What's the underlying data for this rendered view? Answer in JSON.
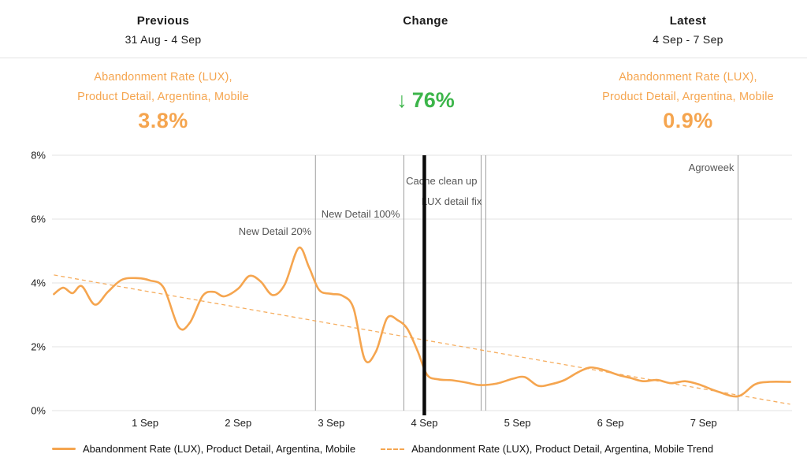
{
  "colors": {
    "accent_orange": "#F5A54F",
    "positive_green": "#3CB54A",
    "text_dark": "#1b1b1b",
    "annotation_gray": "#555555",
    "event_line_gray": "#9e9e9e",
    "grid_gray": "#e3e3e3",
    "divider_black": "#0a0a0a"
  },
  "header": {
    "previous": {
      "label": "Previous",
      "range": "31 Aug - 4 Sep"
    },
    "change": {
      "label": "Change"
    },
    "latest": {
      "label": "Latest",
      "range": "4 Sep - 7 Sep"
    }
  },
  "metrics": {
    "previous": {
      "name_line1": "Abandonment Rate (LUX),",
      "name_line2": "Product Detail, Argentina, Mobile",
      "value": "3.8%"
    },
    "change": {
      "arrow": "↓",
      "value": "76%"
    },
    "latest": {
      "name_line1": "Abandonment Rate (LUX),",
      "name_line2": "Product Detail, Argentina, Mobile",
      "value": "0.9%"
    }
  },
  "legend": [
    {
      "style": "solid",
      "label": "Abandonment Rate (LUX), Product Detail, Argentina, Mobile"
    },
    {
      "style": "dashed",
      "label": "Abandonment Rate (LUX), Product Detail, Argentina, Mobile Trend"
    }
  ],
  "chart_data": {
    "type": "line",
    "title": "Abandonment Rate (LUX), Product Detail, Argentina, Mobile",
    "x_unit": "days since 31 Aug",
    "xlim": [
      0,
      7.95
    ],
    "ylim": [
      0,
      8
    ],
    "grid": true,
    "yticks": [
      {
        "value": 0,
        "label": "0%"
      },
      {
        "value": 2,
        "label": "2%"
      },
      {
        "value": 4,
        "label": "4%"
      },
      {
        "value": 6,
        "label": "6%"
      },
      {
        "value": 8,
        "label": "8%"
      }
    ],
    "xticks": [
      {
        "value": 1,
        "label": "1 Sep"
      },
      {
        "value": 2,
        "label": "2 Sep"
      },
      {
        "value": 3,
        "label": "3 Sep"
      },
      {
        "value": 4,
        "label": "4 Sep"
      },
      {
        "value": 5,
        "label": "5 Sep"
      },
      {
        "value": 6,
        "label": "6 Sep"
      },
      {
        "value": 7,
        "label": "7 Sep"
      }
    ],
    "series": [
      {
        "name": "Abandonment Rate (LUX), Product Detail, Argentina, Mobile",
        "style": "solid",
        "points": [
          [
            0.02,
            3.65
          ],
          [
            0.12,
            3.85
          ],
          [
            0.22,
            3.68
          ],
          [
            0.32,
            3.9
          ],
          [
            0.46,
            3.32
          ],
          [
            0.6,
            3.72
          ],
          [
            0.75,
            4.1
          ],
          [
            0.92,
            4.15
          ],
          [
            1.05,
            4.08
          ],
          [
            1.2,
            3.85
          ],
          [
            1.36,
            2.62
          ],
          [
            1.48,
            2.75
          ],
          [
            1.62,
            3.6
          ],
          [
            1.74,
            3.72
          ],
          [
            1.85,
            3.58
          ],
          [
            2.0,
            3.82
          ],
          [
            2.12,
            4.22
          ],
          [
            2.24,
            4.05
          ],
          [
            2.37,
            3.62
          ],
          [
            2.5,
            3.95
          ],
          [
            2.65,
            5.1
          ],
          [
            2.76,
            4.5
          ],
          [
            2.87,
            3.78
          ],
          [
            3.0,
            3.66
          ],
          [
            3.12,
            3.6
          ],
          [
            3.24,
            3.2
          ],
          [
            3.36,
            1.6
          ],
          [
            3.48,
            1.85
          ],
          [
            3.6,
            2.9
          ],
          [
            3.72,
            2.82
          ],
          [
            3.82,
            2.55
          ],
          [
            3.93,
            1.85
          ],
          [
            4.03,
            1.12
          ],
          [
            4.15,
            0.98
          ],
          [
            4.3,
            0.95
          ],
          [
            4.45,
            0.88
          ],
          [
            4.6,
            0.8
          ],
          [
            4.78,
            0.85
          ],
          [
            4.95,
            1.0
          ],
          [
            5.08,
            1.05
          ],
          [
            5.22,
            0.78
          ],
          [
            5.35,
            0.82
          ],
          [
            5.5,
            0.95
          ],
          [
            5.65,
            1.2
          ],
          [
            5.78,
            1.35
          ],
          [
            5.92,
            1.28
          ],
          [
            6.08,
            1.12
          ],
          [
            6.22,
            1.02
          ],
          [
            6.35,
            0.92
          ],
          [
            6.5,
            0.96
          ],
          [
            6.65,
            0.86
          ],
          [
            6.8,
            0.92
          ],
          [
            6.95,
            0.82
          ],
          [
            7.15,
            0.6
          ],
          [
            7.37,
            0.45
          ],
          [
            7.55,
            0.82
          ],
          [
            7.7,
            0.9
          ],
          [
            7.93,
            0.9
          ]
        ]
      },
      {
        "name": "Abandonment Rate (LUX), Product Detail, Argentina, Mobile Trend",
        "style": "dashed",
        "points": [
          [
            0.02,
            4.25
          ],
          [
            7.93,
            0.2
          ]
        ]
      }
    ],
    "events": [
      {
        "label": "New Detail 20%",
        "day": 2.83,
        "label_dy": 97
      },
      {
        "label": "New Detail 100%",
        "day": 3.78,
        "label_dy": 75
      },
      {
        "label": "Cache clean up",
        "day": 4.61,
        "label_dy": 33
      },
      {
        "label": "LUX detail fix",
        "day": 4.66,
        "label_dy": 59
      },
      {
        "label": "Agroweek",
        "day": 7.37,
        "label_dy": 16
      }
    ],
    "period_divider_day": 4,
    "legend_position": "bottom"
  }
}
